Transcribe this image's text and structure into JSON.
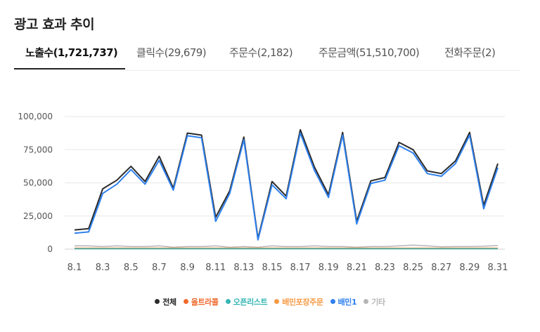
{
  "page": {
    "title": "광고 효과 추이"
  },
  "tabs": [
    {
      "label": "노출수(1,721,737)",
      "active": true
    },
    {
      "label": "클릭수(29,679)",
      "active": false
    },
    {
      "label": "주문수(2,182)",
      "active": false
    },
    {
      "label": "주문금액(51,510,700)",
      "active": false
    },
    {
      "label": "전화주문(2)",
      "active": false
    }
  ],
  "chart_data": {
    "type": "line",
    "title": "",
    "xlabel": "",
    "ylabel": "",
    "ylim": [
      0,
      100000
    ],
    "yticks": [
      0,
      25000,
      50000,
      75000,
      100000
    ],
    "ytick_labels": [
      "0",
      "25,000",
      "50,000",
      "75,000",
      "100,000"
    ],
    "x": [
      "8.1",
      "8.2",
      "8.3",
      "8.4",
      "8.5",
      "8.6",
      "8.7",
      "8.8",
      "8.9",
      "8.10",
      "8.11",
      "8.12",
      "8.13",
      "8.14",
      "8.15",
      "8.16",
      "8.17",
      "8.18",
      "8.19",
      "8.20",
      "8.21",
      "8.22",
      "8.23",
      "8.24",
      "8.25",
      "8.26",
      "8.27",
      "8.28",
      "8.29",
      "8.30",
      "8.31"
    ],
    "xtick_labels": [
      "8.1",
      "8.3",
      "8.5",
      "8.7",
      "8.9",
      "8.11",
      "8.13",
      "8.15",
      "8.17",
      "8.19",
      "8.21",
      "8.23",
      "8.25",
      "8.27",
      "8.29",
      "8.31"
    ],
    "grid": true,
    "legend_position": "bottom",
    "series": [
      {
        "name": "전체",
        "color": "#2b2b2b",
        "values": [
          14500,
          15500,
          45500,
          52000,
          62500,
          51000,
          70000,
          46000,
          87500,
          86000,
          24000,
          44000,
          84500,
          8000,
          51000,
          40000,
          90000,
          62000,
          41000,
          88000,
          21000,
          51500,
          54000,
          80500,
          75000,
          59000,
          57000,
          66500,
          88000,
          33000,
          64500
        ]
      },
      {
        "name": "올트라콜",
        "color": "#f0682c",
        "values": [
          500,
          500,
          500,
          500,
          500,
          500,
          500,
          500,
          500,
          500,
          500,
          500,
          500,
          500,
          500,
          500,
          500,
          500,
          500,
          500,
          500,
          500,
          500,
          500,
          500,
          500,
          500,
          500,
          500,
          500,
          500
        ]
      },
      {
        "name": "오픈리스트",
        "color": "#35b6b4",
        "values": [
          300,
          300,
          300,
          300,
          300,
          300,
          300,
          300,
          300,
          300,
          300,
          300,
          300,
          300,
          300,
          300,
          300,
          300,
          300,
          300,
          300,
          300,
          300,
          300,
          300,
          300,
          300,
          300,
          300,
          300,
          300
        ]
      },
      {
        "name": "배민포장주문",
        "color": "#f59a45",
        "values": [
          800,
          800,
          800,
          800,
          800,
          800,
          800,
          800,
          800,
          800,
          800,
          800,
          800,
          800,
          800,
          800,
          800,
          800,
          800,
          800,
          800,
          800,
          800,
          800,
          800,
          800,
          800,
          800,
          800,
          800,
          800
        ]
      },
      {
        "name": "배민1",
        "color": "#2f80ed",
        "values": [
          12000,
          13000,
          42000,
          49000,
          60000,
          49000,
          67000,
          44500,
          85500,
          84000,
          21000,
          42000,
          82500,
          7000,
          48500,
          38000,
          87500,
          59500,
          39000,
          86000,
          19000,
          49500,
          52000,
          78000,
          72500,
          57000,
          55000,
          64500,
          86000,
          30500,
          61500
        ]
      },
      {
        "name": "기타",
        "color": "#b5b5b5",
        "values": [
          2500,
          2500,
          2000,
          2500,
          2000,
          2000,
          2500,
          1500,
          2000,
          2000,
          2500,
          1500,
          2000,
          1500,
          2500,
          2000,
          2000,
          2500,
          2000,
          2000,
          1500,
          2000,
          2000,
          2500,
          3000,
          2500,
          1800,
          2000,
          2000,
          2200,
          2800
        ]
      }
    ]
  }
}
